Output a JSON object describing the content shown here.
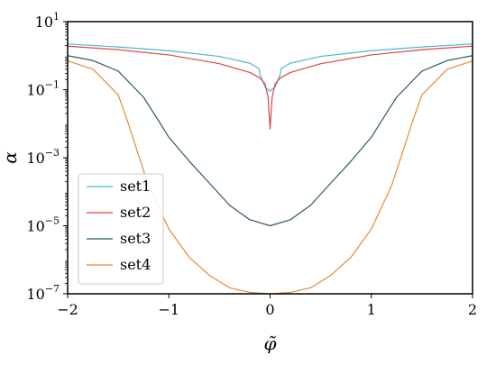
{
  "chart_data": {
    "type": "line",
    "xlabel": "φ̃",
    "ylabel": "α",
    "xlim": [
      -2,
      2
    ],
    "ylim": [
      1e-07,
      10
    ],
    "yscale": "log",
    "xticks": [
      "−2",
      "−1",
      "0",
      "1",
      "2"
    ],
    "yticks": [
      {
        "base": "10",
        "exp": "−7"
      },
      {
        "base": "10",
        "exp": "−5"
      },
      {
        "base": "10",
        "exp": "−3"
      },
      {
        "base": "10",
        "exp": "−1"
      },
      {
        "base": "10",
        "exp": "1"
      }
    ],
    "legend_position": "lower-left",
    "grid": false,
    "series": [
      {
        "name": "set1",
        "color": "#4fb6cf",
        "x": [
          -2,
          -1.5,
          -1,
          -0.5,
          -0.2,
          -0.11,
          -0.1,
          -0.05,
          0,
          0.05,
          0.1,
          0.11,
          0.2,
          0.5,
          1,
          1.5,
          2
        ],
        "y": [
          2.2,
          1.8,
          1.4,
          0.95,
          0.6,
          0.42,
          0.28,
          0.12,
          0.09,
          0.12,
          0.28,
          0.42,
          0.6,
          0.95,
          1.4,
          1.8,
          2.2
        ]
      },
      {
        "name": "set2",
        "color": "#d94848",
        "x": [
          -2,
          -1.5,
          -1,
          -0.5,
          -0.2,
          -0.1,
          -0.05,
          -0.02,
          0,
          0.02,
          0.05,
          0.1,
          0.2,
          0.5,
          1,
          1.5,
          2
        ],
        "y": [
          1.9,
          1.5,
          1.05,
          0.58,
          0.32,
          0.22,
          0.15,
          0.06,
          0.007,
          0.06,
          0.15,
          0.22,
          0.32,
          0.58,
          1.05,
          1.5,
          1.9
        ]
      },
      {
        "name": "set3",
        "color": "#2f5b5b",
        "x": [
          -2,
          -1.75,
          -1.5,
          -1.25,
          -1.1,
          -1,
          -0.8,
          -0.6,
          -0.4,
          -0.2,
          0,
          0.2,
          0.4,
          0.6,
          0.8,
          1,
          1.1,
          1.25,
          1.5,
          1.75,
          2
        ],
        "y": [
          1.0,
          0.72,
          0.35,
          0.06,
          0.012,
          0.004,
          0.0008,
          0.00018,
          4e-05,
          1.5e-05,
          1e-05,
          1.5e-05,
          4e-05,
          0.00018,
          0.0008,
          0.004,
          0.012,
          0.06,
          0.35,
          0.72,
          1.0
        ]
      },
      {
        "name": "set4",
        "color": "#e38a3a",
        "x": [
          -2,
          -1.75,
          -1.5,
          -1.4,
          -1.3,
          -1.2,
          -1,
          -0.8,
          -0.6,
          -0.4,
          -0.2,
          0,
          0.2,
          0.4,
          0.6,
          0.8,
          1,
          1.2,
          1.3,
          1.4,
          1.5,
          1.75,
          2
        ],
        "y": [
          0.7,
          0.4,
          0.07,
          0.01,
          0.0012,
          0.00015,
          8e-06,
          1.2e-06,
          3.5e-07,
          1.5e-07,
          1.1e-07,
          1e-07,
          1.1e-07,
          1.5e-07,
          3.5e-07,
          1.2e-06,
          8e-06,
          0.00015,
          0.0012,
          0.01,
          0.07,
          0.4,
          0.7
        ]
      }
    ]
  }
}
